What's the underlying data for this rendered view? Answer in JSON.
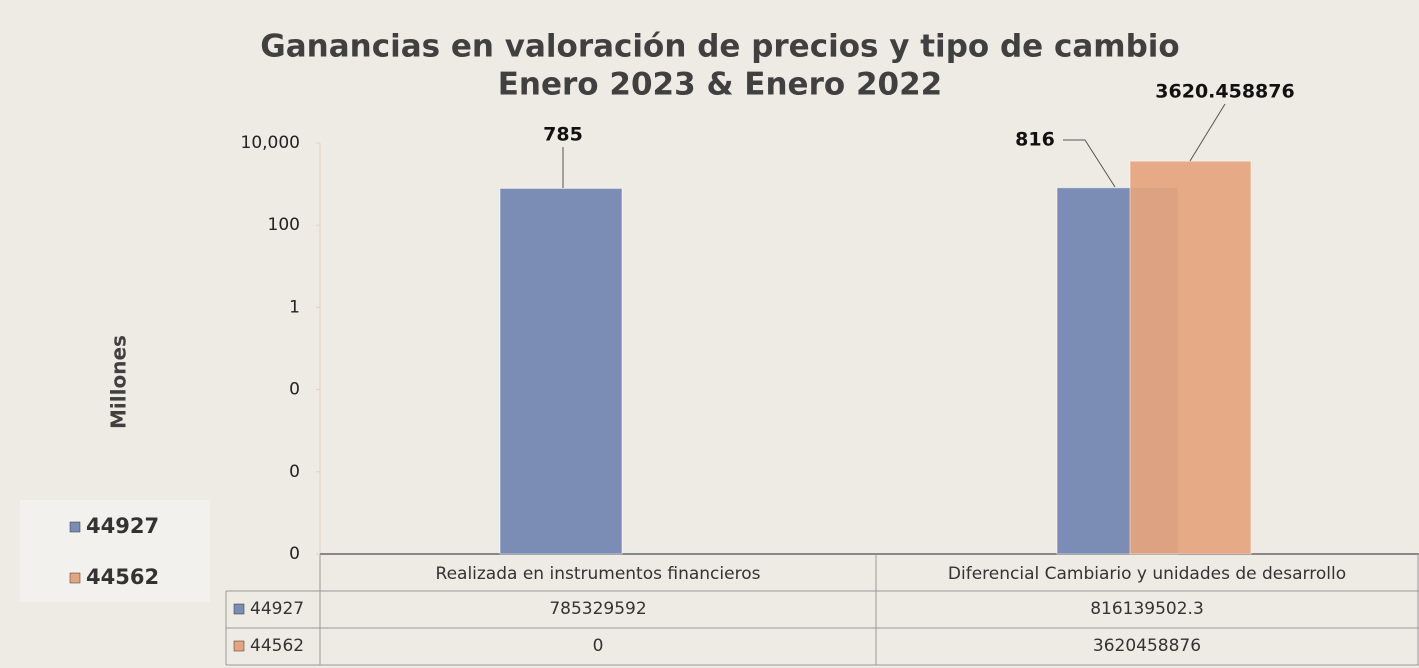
{
  "chart_data": {
    "type": "bar",
    "title": "Ganancias en valoración de precios y  tipo de cambio",
    "subtitle": "Enero 2023 & Enero 2022",
    "y_label": "Millones",
    "log_scale": true,
    "categories": [
      "Realizada en instrumentos financieros",
      "Diferencial Cambiario y unidades de desarrollo"
    ],
    "series": [
      {
        "name": "44927",
        "color": "#7b8db5",
        "values": [
          785.329592,
          816.1395023
        ],
        "value_labels": [
          "785",
          "816"
        ]
      },
      {
        "name": "44562",
        "color": "#e5a47e",
        "values": [
          0,
          3620.458876
        ],
        "value_labels": [
          null,
          "3620.458876"
        ]
      }
    ],
    "ylim": [
      1e-06,
      10000
    ],
    "yticks": [
      {
        "value": 10000,
        "label": "10,000"
      },
      100,
      1,
      {
        "value": 0.01,
        "label": "0"
      },
      {
        "value": 0.0001,
        "label": "0"
      },
      {
        "value": 1e-06,
        "label": "0"
      }
    ],
    "data_table": {
      "rows": [
        [
          785329592,
          816139502.3
        ],
        [
          0,
          3620458876
        ]
      ]
    }
  }
}
